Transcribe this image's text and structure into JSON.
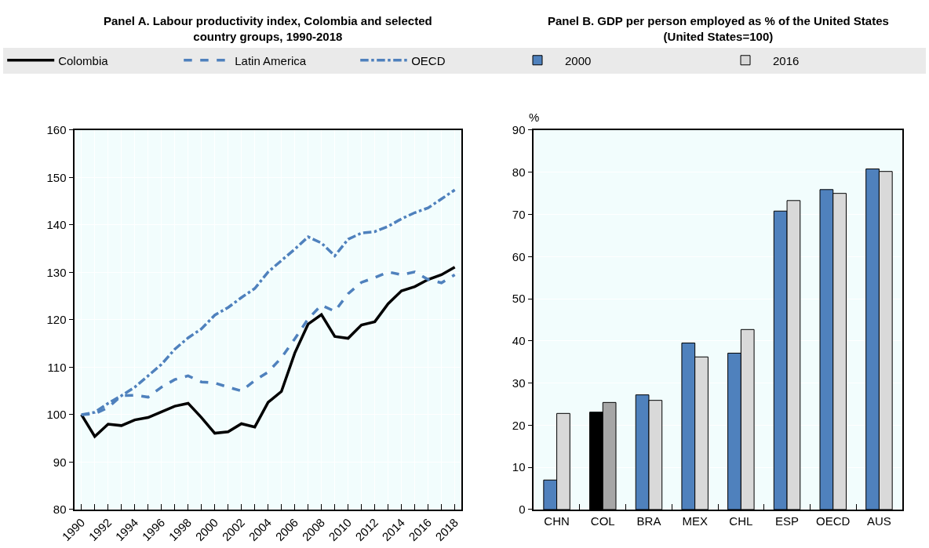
{
  "chart_data": [
    {
      "type": "line",
      "title": "Panel A. Labour productivity index, Colombia and selected country groups, 1990-2018",
      "x": [
        1990,
        1991,
        1992,
        1993,
        1994,
        1995,
        1996,
        1997,
        1998,
        1999,
        2000,
        2001,
        2002,
        2003,
        2004,
        2005,
        2006,
        2007,
        2008,
        2009,
        2010,
        2011,
        2012,
        2013,
        2014,
        2015,
        2016,
        2017,
        2018
      ],
      "series": [
        {
          "name": "Colombia",
          "color": "#000000",
          "line_style": "solid",
          "values": [
            100,
            95.4,
            98.0,
            97.7,
            98.9,
            99.4,
            100.6,
            101.8,
            102.4,
            99.4,
            96.1,
            96.4,
            98.1,
            97.4,
            102.6,
            104.9,
            113.0,
            119.1,
            121.1,
            116.5,
            116.1,
            118.9,
            119.6,
            123.4,
            126.1,
            127.0,
            128.5,
            129.5,
            131.1
          ]
        },
        {
          "name": "Latin America",
          "color": "#4f81bd",
          "line_style": "dashed",
          "values": [
            100,
            100.2,
            101.5,
            104.0,
            104.1,
            103.7,
            105.8,
            107.4,
            108.2,
            106.9,
            106.7,
            105.8,
            105.0,
            107.2,
            109.0,
            112.0,
            116.0,
            120.2,
            123.1,
            121.8,
            125.5,
            127.9,
            128.9,
            130.1,
            129.5,
            130.1,
            128.5,
            127.8,
            129.5
          ]
        },
        {
          "name": "OECD",
          "color": "#4f81bd",
          "line_style": "dashdot",
          "values": [
            100,
            100.5,
            102.4,
            104.0,
            105.8,
            108.2,
            110.6,
            113.8,
            116.2,
            118.1,
            121.0,
            122.6,
            124.7,
            126.6,
            130.1,
            132.5,
            134.9,
            137.5,
            136.2,
            133.5,
            137.0,
            138.3,
            138.6,
            139.7,
            141.3,
            142.6,
            143.6,
            145.5,
            147.4
          ]
        }
      ],
      "xlim": [
        1989.5,
        2018.5
      ],
      "xticks": [
        1990,
        {
          "value": 1991,
          "label": null
        },
        1992,
        {
          "value": 1993,
          "label": null
        },
        1994,
        {
          "value": 1995,
          "label": null
        },
        1996,
        {
          "value": 1997,
          "label": null
        },
        1998,
        {
          "value": 1999,
          "label": null
        },
        2000,
        {
          "value": 2001,
          "label": null
        },
        2002,
        {
          "value": 2003,
          "label": null
        },
        2004,
        {
          "value": 2005,
          "label": null
        },
        2006,
        {
          "value": 2007,
          "label": null
        },
        2008,
        {
          "value": 2009,
          "label": null
        },
        2010,
        {
          "value": 2011,
          "label": null
        },
        2012,
        {
          "value": 2013,
          "label": null
        },
        2014,
        {
          "value": 2015,
          "label": null
        },
        2016,
        {
          "value": 2017,
          "label": null
        },
        2018
      ],
      "ylim": [
        80,
        160
      ],
      "yticks": [
        80,
        90,
        100,
        110,
        120,
        130,
        140,
        150,
        160
      ],
      "grid": true,
      "legend": "top",
      "marker": "none"
    },
    {
      "type": "bar",
      "title": "Panel B. GDP per person employed as % of the United States (United States=100)",
      "ylabel": "%",
      "categories": [
        "CHN",
        "COL",
        "BRA",
        "MEX",
        "CHL",
        "ESP",
        "OECD",
        "AUS"
      ],
      "series": [
        {
          "name": "2000",
          "color": "#4f81bd",
          "colors": [
            "#4f81bd",
            "#000000",
            "#4f81bd",
            "#4f81bd",
            "#4f81bd",
            "#4f81bd",
            "#4f81bd",
            "#4f81bd"
          ],
          "values": [
            7.0,
            23.1,
            27.2,
            39.5,
            37.1,
            70.8,
            75.9,
            80.8
          ]
        },
        {
          "name": "2016",
          "color": "#d9d9d9",
          "colors": [
            "#d9d9d9",
            "#a6a6a6",
            "#d9d9d9",
            "#d9d9d9",
            "#d9d9d9",
            "#d9d9d9",
            "#d9d9d9",
            "#d9d9d9"
          ],
          "values": [
            22.8,
            25.4,
            25.9,
            36.2,
            42.7,
            73.3,
            75.0,
            80.2
          ]
        }
      ],
      "ylim": [
        0,
        90
      ],
      "yticks": [
        0,
        10,
        20,
        30,
        40,
        50,
        60,
        70,
        80,
        90
      ],
      "grid": "y",
      "legend": "top"
    }
  ]
}
